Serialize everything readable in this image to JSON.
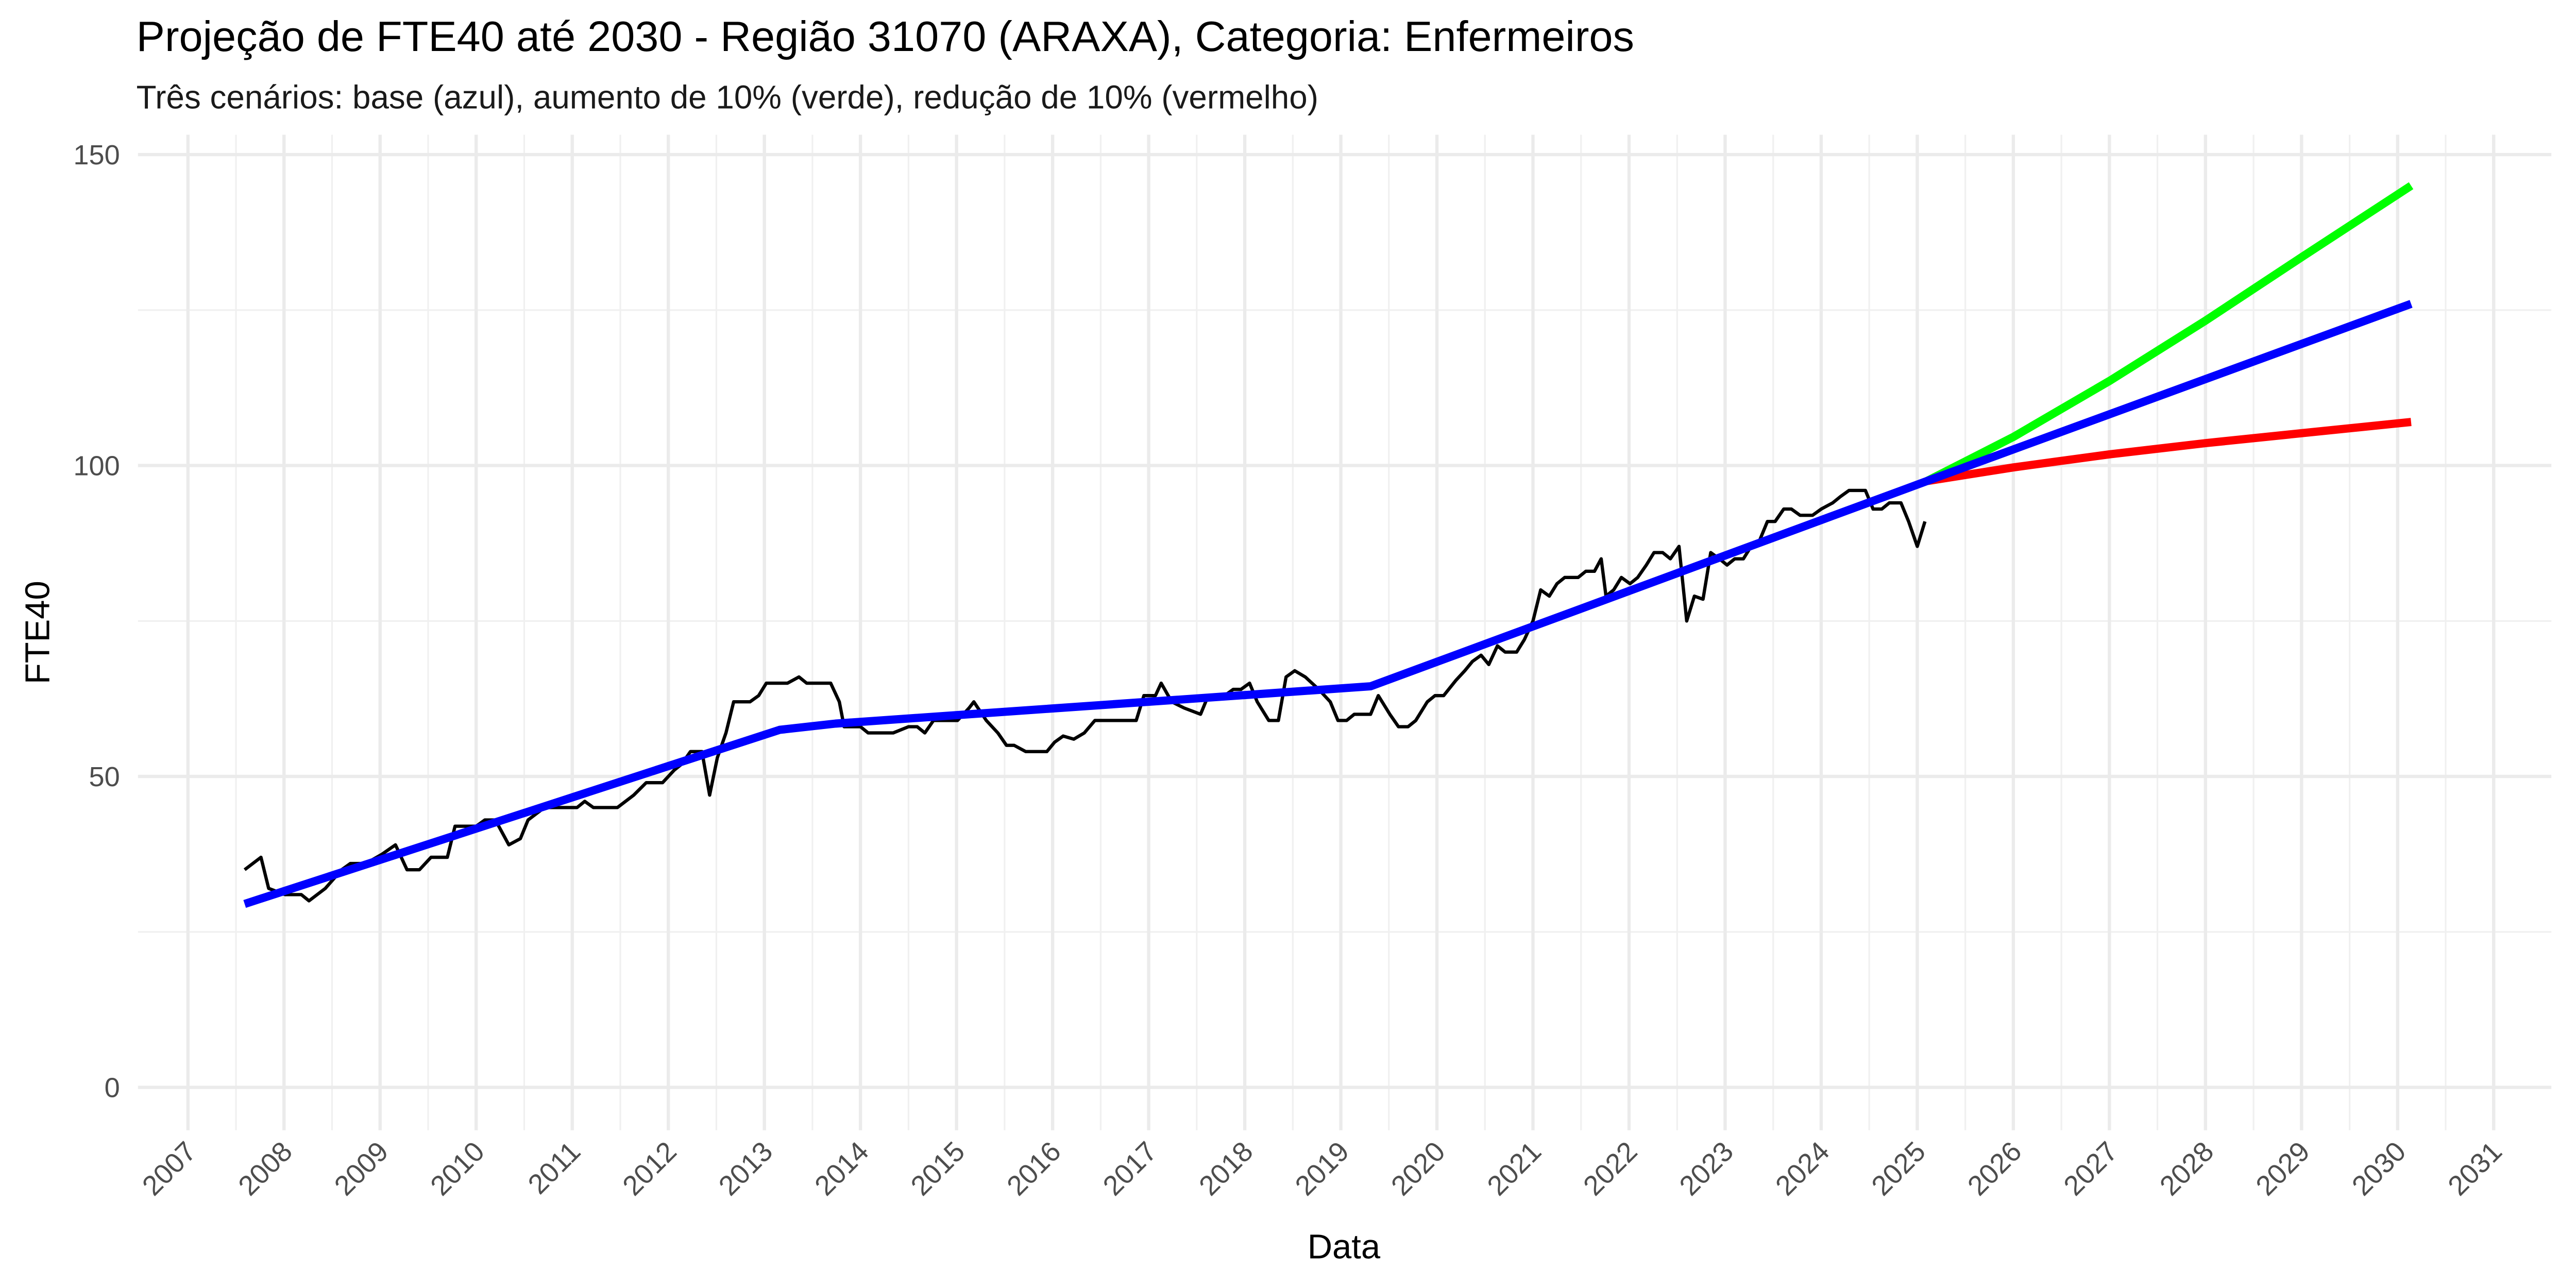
{
  "chart_data": {
    "type": "line",
    "title": "Projeção de FTE40 até 2030 - Região 31070 (ARAXA), Categoria: Enfermeiros",
    "subtitle": "Três cenários: base (azul), aumento de 10% (verde), redução de 10% (vermelho)",
    "x_label": "Data",
    "y_label": "FTE40",
    "xlim": [
      2006.48,
      2031.6
    ],
    "xticks": [
      2007,
      2008,
      2009,
      2010,
      2011,
      2012,
      2013,
      2014,
      2015,
      2016,
      2017,
      2018,
      2019,
      2020,
      2021,
      2022,
      2023,
      2024,
      2025,
      2026,
      2027,
      2028,
      2029,
      2030,
      2031
    ],
    "ylim": [
      -6.9,
      153.2
    ],
    "yticks": [
      0,
      50,
      100,
      150
    ],
    "grid": true,
    "series": [
      {
        "color": "#000000",
        "width": 2,
        "x": [
          2007.59,
          2007.76,
          2007.84,
          2008.01,
          2008.18,
          2008.26,
          2008.43,
          2008.6,
          2008.69,
          2008.85,
          2009.02,
          2009.16,
          2009.28,
          2009.41,
          2009.53,
          2009.7,
          2009.78,
          2010.0,
          2010.09,
          2010.2,
          2010.34,
          2010.46,
          2010.54,
          2010.71,
          2010.88,
          2011.05,
          2011.13,
          2011.22,
          2011.47,
          2011.64,
          2011.77,
          2011.94,
          2012.06,
          2012.14,
          2012.23,
          2012.35,
          2012.43,
          2012.51,
          2012.6,
          2012.68,
          2012.85,
          2012.94,
          2013.02,
          2013.24,
          2013.36,
          2013.44,
          2013.69,
          2013.78,
          2013.83,
          2014.0,
          2014.08,
          2014.34,
          2014.5,
          2014.59,
          2014.67,
          2014.76,
          2015.01,
          2015.13,
          2015.18,
          2015.31,
          2015.43,
          2015.52,
          2015.6,
          2015.72,
          2015.94,
          2016.02,
          2016.11,
          2016.22,
          2016.33,
          2016.44,
          2016.53,
          2016.87,
          2016.95,
          2017.07,
          2017.13,
          2017.24,
          2017.37,
          2017.54,
          2017.62,
          2017.79,
          2017.88,
          2017.96,
          2018.05,
          2018.13,
          2018.25,
          2018.35,
          2018.43,
          2018.52,
          2018.63,
          2018.77,
          2018.89,
          2018.97,
          2019.06,
          2019.14,
          2019.31,
          2019.39,
          2019.51,
          2019.6,
          2019.7,
          2019.78,
          2019.9,
          2019.98,
          2020.07,
          2020.2,
          2020.29,
          2020.37,
          2020.46,
          2020.54,
          2020.63,
          2020.71,
          2020.83,
          2020.91,
          2021.0,
          2021.08,
          2021.17,
          2021.25,
          2021.33,
          2021.47,
          2021.55,
          2021.64,
          2021.71,
          2021.76,
          2021.84,
          2021.92,
          2022.01,
          2022.09,
          2022.18,
          2022.26,
          2022.35,
          2022.43,
          2022.52,
          2022.6,
          2022.68,
          2022.77,
          2022.85,
          2022.94,
          2023.02,
          2023.1,
          2023.19,
          2023.27,
          2023.36,
          2023.44,
          2023.52,
          2023.61,
          2023.69,
          2023.78,
          2023.91,
          2024.0,
          2024.12,
          2024.2,
          2024.29,
          2024.46,
          2024.54,
          2024.63,
          2024.71,
          2024.83,
          2024.91,
          2025.0,
          2025.08
        ],
        "values": [
          35,
          37,
          32,
          31,
          31,
          30,
          32,
          35,
          36,
          36,
          37.5,
          39,
          35,
          35,
          37,
          37,
          42,
          42,
          43,
          43,
          39,
          40,
          43,
          45,
          45,
          45,
          46,
          45,
          45,
          47,
          49,
          49,
          51,
          52,
          54,
          54,
          47,
          53,
          57,
          62,
          62,
          63,
          65,
          65,
          66,
          65,
          65,
          62,
          58,
          58,
          57,
          57,
          58,
          58,
          57,
          59,
          59,
          61,
          62,
          59,
          57,
          55,
          55,
          54,
          54,
          55.5,
          56.5,
          56,
          57,
          59,
          59,
          59,
          63,
          63,
          65,
          62,
          61,
          60,
          63,
          63,
          64,
          64,
          65,
          62,
          59,
          59,
          66,
          67,
          66,
          64,
          62,
          59,
          59,
          60,
          60,
          63,
          60,
          58,
          58,
          59,
          62,
          63,
          63,
          65.5,
          67,
          68.5,
          69.5,
          68,
          71,
          70,
          70,
          72,
          75,
          80,
          79,
          81,
          82,
          82,
          83,
          83,
          85,
          79,
          80,
          82,
          81,
          82,
          84,
          86,
          86,
          85,
          87,
          75,
          79,
          78.5,
          86,
          85,
          84,
          85,
          85,
          87,
          88,
          91,
          91,
          93,
          93,
          92,
          92,
          93,
          94,
          95,
          96,
          96,
          93,
          93,
          94,
          94,
          91,
          87,
          91
        ]
      },
      {
        "color": "#00ff00",
        "width": 5,
        "x": [
          2025.1,
          2026,
          2027,
          2028,
          2029,
          2030.14
        ],
        "values": [
          97.5,
          104.6,
          113.6,
          123.3,
          133.5,
          145
        ]
      },
      {
        "color": "#ff0000",
        "width": 5,
        "x": [
          2025.1,
          2026,
          2027,
          2028,
          2029,
          2030.14
        ],
        "values": [
          97.5,
          99.7,
          101.8,
          103.6,
          105.2,
          107
        ]
      },
      {
        "color": "#0000ff",
        "width": 5,
        "x": [
          2007.59,
          2013.16,
          2013.74,
          2019.31,
          2025.1,
          2030.14
        ],
        "values": [
          29.5,
          57.5,
          58.5,
          64.5,
          97.5,
          126
        ]
      }
    ]
  }
}
